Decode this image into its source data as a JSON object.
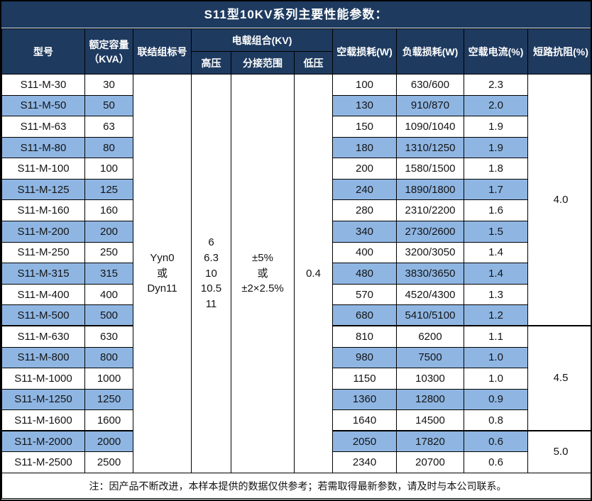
{
  "title": "S11型10KV系列主要性能参数：",
  "colors": {
    "header_bg": "#1E3A5F",
    "stripe_bg": "#8FB6E3",
    "border": "#000000",
    "header_text": "#FFFFFF"
  },
  "header": {
    "model": "型号",
    "capacity_line1": "额定容量",
    "capacity_line2": "（KVA）",
    "connection": "联结组标号",
    "voltage_group": "电载组合(KV)",
    "hv": "高压",
    "tap_range": "分接范围",
    "lv": "低压",
    "no_load_loss": "空载损耗(W)",
    "load_loss": "负载损耗(W)",
    "no_load_current": "空载电流(%)",
    "impedance": "短路抗阻(%)"
  },
  "merged": {
    "connection": [
      "Yyn0",
      "或",
      "Dyn11"
    ],
    "hv": [
      "6",
      "6.3",
      "10",
      "10.5",
      "11"
    ],
    "tap_range": [
      "±5%",
      "或",
      "±2×2.5%"
    ],
    "lv": "0.4"
  },
  "rows": [
    {
      "model": "S11-M-30",
      "capacity": "30",
      "no_load_loss": "100",
      "load_loss": "630/600",
      "no_load_current": "2.3"
    },
    {
      "model": "S11-M-50",
      "capacity": "50",
      "no_load_loss": "130",
      "load_loss": "910/870",
      "no_load_current": "2.0"
    },
    {
      "model": "S11-M-63",
      "capacity": "63",
      "no_load_loss": "150",
      "load_loss": "1090/1040",
      "no_load_current": "1.9"
    },
    {
      "model": "S11-M-80",
      "capacity": "80",
      "no_load_loss": "180",
      "load_loss": "1310/1250",
      "no_load_current": "1.9"
    },
    {
      "model": "S11-M-100",
      "capacity": "100",
      "no_load_loss": "200",
      "load_loss": "1580/1500",
      "no_load_current": "1.8"
    },
    {
      "model": "S11-M-125",
      "capacity": "125",
      "no_load_loss": "240",
      "load_loss": "1890/1800",
      "no_load_current": "1.7"
    },
    {
      "model": "S11-M-160",
      "capacity": "160",
      "no_load_loss": "280",
      "load_loss": "2310/2200",
      "no_load_current": "1.6"
    },
    {
      "model": "S11-M-200",
      "capacity": "200",
      "no_load_loss": "340",
      "load_loss": "2730/2600",
      "no_load_current": "1.5"
    },
    {
      "model": "S11-M-250",
      "capacity": "250",
      "no_load_loss": "400",
      "load_loss": "3200/3050",
      "no_load_current": "1.4"
    },
    {
      "model": "S11-M-315",
      "capacity": "315",
      "no_load_loss": "480",
      "load_loss": "3830/3650",
      "no_load_current": "1.4"
    },
    {
      "model": "S11-M-400",
      "capacity": "400",
      "no_load_loss": "570",
      "load_loss": "4520/4300",
      "no_load_current": "1.3"
    },
    {
      "model": "S11-M-500",
      "capacity": "500",
      "no_load_loss": "680",
      "load_loss": "5410/5100",
      "no_load_current": "1.2"
    },
    {
      "model": "S11-M-630",
      "capacity": "630",
      "no_load_loss": "810",
      "load_loss": "6200",
      "no_load_current": "1.1"
    },
    {
      "model": "S11-M-800",
      "capacity": "800",
      "no_load_loss": "980",
      "load_loss": "7500",
      "no_load_current": "1.0"
    },
    {
      "model": "S11-M-1000",
      "capacity": "1000",
      "no_load_loss": "1150",
      "load_loss": "10300",
      "no_load_current": "1.0"
    },
    {
      "model": "S11-M-1250",
      "capacity": "1250",
      "no_load_loss": "1360",
      "load_loss": "12800",
      "no_load_current": "0.9"
    },
    {
      "model": "S11-M-1600",
      "capacity": "1600",
      "no_load_loss": "1640",
      "load_loss": "14500",
      "no_load_current": "0.8"
    },
    {
      "model": "S11-M-2000",
      "capacity": "2000",
      "no_load_loss": "2050",
      "load_loss": "17820",
      "no_load_current": "0.6"
    },
    {
      "model": "S11-M-2500",
      "capacity": "2500",
      "no_load_loss": "2340",
      "load_loss": "20700",
      "no_load_current": "0.6"
    }
  ],
  "impedance_groups": [
    {
      "value": "4.0",
      "span": 12
    },
    {
      "value": "4.5",
      "span": 5
    },
    {
      "value": "5.0",
      "span": 2
    }
  ],
  "footnote": "注：因产品不断改进，本样本提供的数据仅供参考；若需取得最新参数，请及时与本公司联系。"
}
